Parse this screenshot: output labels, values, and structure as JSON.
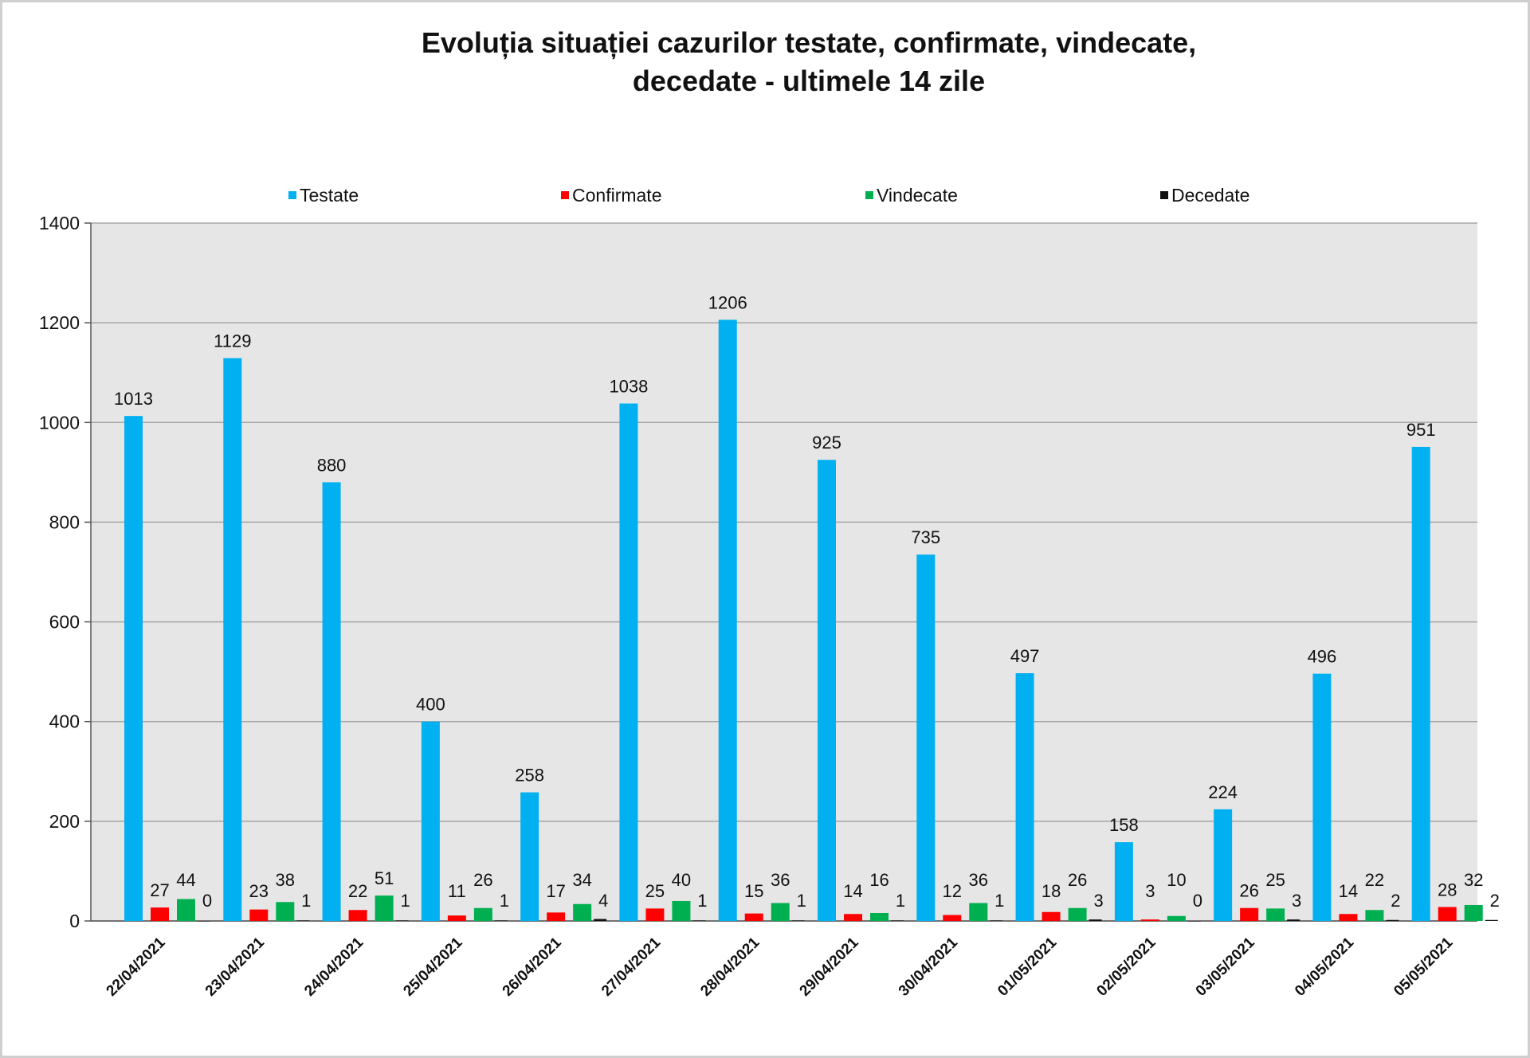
{
  "chart_data": {
    "type": "bar",
    "title_line1": "Evoluția situației cazurilor testate, confirmate, vindecate,",
    "title_line2": "decedate -  ultimele 14 zile",
    "categories": [
      "22/04/2021",
      "23/04/2021",
      "24/04/2021",
      "25/04/2021",
      "26/04/2021",
      "27/04/2021",
      "28/04/2021",
      "29/04/2021",
      "30/04/2021",
      "01/05/2021",
      "02/05/2021",
      "03/05/2021",
      "04/05/2021",
      "05/05/2021"
    ],
    "series": [
      {
        "name": "Testate",
        "color": "#00b0f0",
        "values": [
          1013,
          1129,
          880,
          400,
          258,
          1038,
          1206,
          925,
          735,
          497,
          158,
          224,
          496,
          951
        ]
      },
      {
        "name": "Confirmate",
        "color": "#ff0000",
        "values": [
          27,
          23,
          22,
          11,
          17,
          25,
          15,
          14,
          12,
          18,
          3,
          26,
          14,
          28
        ]
      },
      {
        "name": "Vindecate",
        "color": "#00b050",
        "values": [
          44,
          38,
          51,
          26,
          34,
          40,
          36,
          16,
          36,
          26,
          10,
          25,
          22,
          32
        ]
      },
      {
        "name": "Decedate",
        "color": "#111111",
        "values": [
          0,
          1,
          1,
          1,
          4,
          1,
          1,
          1,
          1,
          3,
          0,
          3,
          2,
          2
        ]
      }
    ],
    "ylim": [
      0,
      1400
    ],
    "yticks": [
      0,
      200,
      400,
      600,
      800,
      1000,
      1200,
      1400
    ],
    "grid": true,
    "legend_position": "top"
  }
}
